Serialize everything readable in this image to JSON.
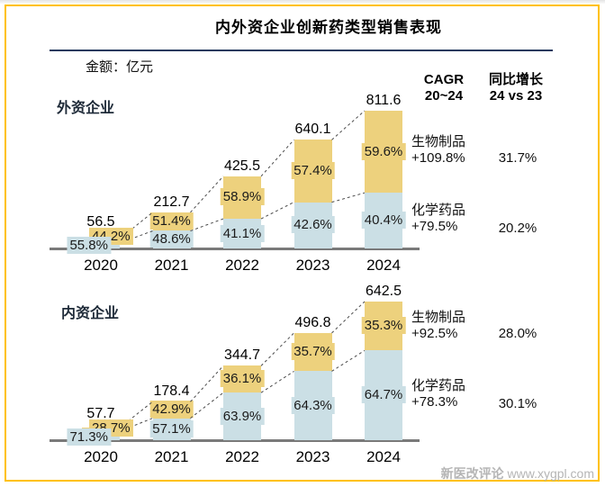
{
  "header": {
    "title": "内外资企业创新药类型销售表现",
    "unit_label": "金额：亿元"
  },
  "columns": {
    "cagr_line1": "CAGR",
    "cagr_line2": "20~24",
    "yoy_line1": "同比增长",
    "yoy_line2": "24 vs 23"
  },
  "colors": {
    "biologics": "#edd17d",
    "chemicals": "#cbdfe5",
    "frame_border": "#ffc107",
    "title_underline": "#223a5e",
    "axis": "#7a7a7a",
    "trend_dash": "#4a4a4a"
  },
  "watermark": {
    "brand": "新医改评论",
    "site": "www.xygpl.com"
  },
  "chart_data": [
    {
      "type": "bar",
      "stacked": true,
      "title": "外资企业",
      "unit": "亿元",
      "categories": [
        "2020",
        "2021",
        "2022",
        "2023",
        "2024"
      ],
      "totals": [
        56.5,
        212.7,
        425.5,
        640.1,
        811.6
      ],
      "series": [
        {
          "name": "化学药品",
          "pct_of_total": [
            55.8,
            48.6,
            41.1,
            42.6,
            40.4
          ],
          "color": "#cbdfe5",
          "cagr": "+79.5%",
          "yoy": "20.2%"
        },
        {
          "name": "生物制品",
          "pct_of_total": [
            44.2,
            51.4,
            58.9,
            57.4,
            59.6
          ],
          "color": "#edd17d",
          "cagr": "+109.8%",
          "yoy": "31.7%"
        }
      ],
      "legend_position": "right",
      "grid": false
    },
    {
      "type": "bar",
      "stacked": true,
      "title": "内资企业",
      "unit": "亿元",
      "categories": [
        "2020",
        "2021",
        "2022",
        "2023",
        "2024"
      ],
      "totals": [
        57.7,
        178.4,
        344.7,
        496.8,
        642.5
      ],
      "series": [
        {
          "name": "化学药品",
          "pct_of_total": [
            71.3,
            57.1,
            63.9,
            64.3,
            64.7
          ],
          "color": "#cbdfe5",
          "cagr": "+78.3%",
          "yoy": "30.1%"
        },
        {
          "name": "生物制品",
          "pct_of_total": [
            28.7,
            42.9,
            36.1,
            35.7,
            35.3
          ],
          "color": "#edd17d",
          "cagr": "+92.5%",
          "yoy": "28.0%"
        }
      ],
      "legend_position": "right",
      "grid": false
    }
  ]
}
